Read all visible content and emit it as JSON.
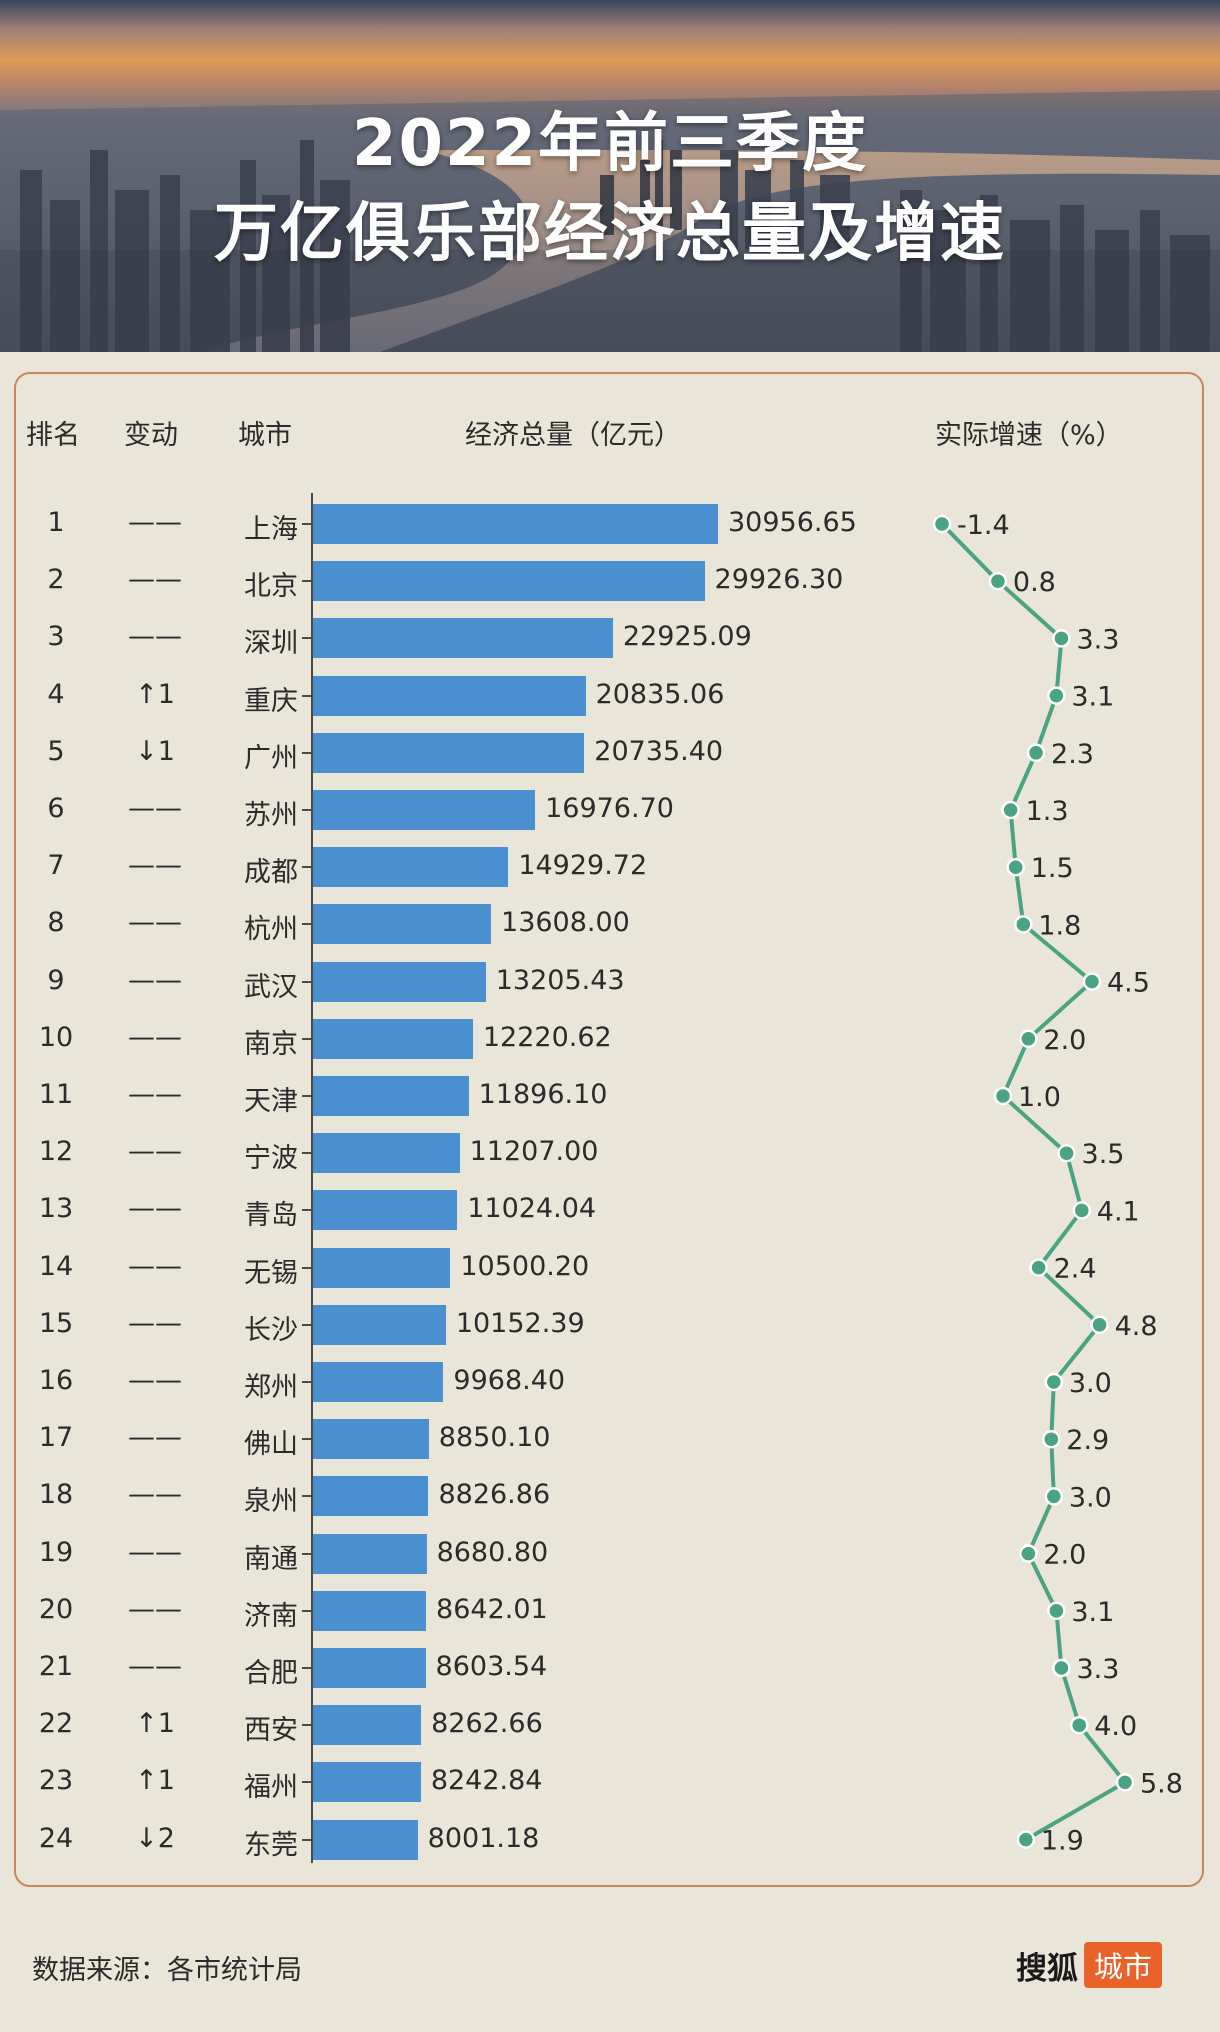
{
  "title_line1": "2022年前三季度",
  "title_line2": "万亿俱乐部经济总量及增速",
  "headers": {
    "rank": "排名",
    "change": "变动",
    "city": "城市",
    "gdp": "经济总量（亿元）",
    "growth": "实际增速（%）"
  },
  "colors": {
    "bar": "#4a90d0",
    "line": "#4aa383",
    "border": "#c8875a",
    "logo_accent": "#e8622a"
  },
  "chart_data": {
    "type": "bar",
    "categories": [
      "上海",
      "北京",
      "深圳",
      "重庆",
      "广州",
      "苏州",
      "成都",
      "杭州",
      "武汉",
      "南京",
      "天津",
      "宁波",
      "青岛",
      "无锡",
      "长沙",
      "郑州",
      "佛山",
      "泉州",
      "南通",
      "济南",
      "合肥",
      "西安",
      "福州",
      "东莞"
    ],
    "ranks": [
      "1",
      "2",
      "3",
      "4",
      "5",
      "6",
      "7",
      "8",
      "9",
      "10",
      "11",
      "12",
      "13",
      "14",
      "15",
      "16",
      "17",
      "18",
      "19",
      "20",
      "21",
      "22",
      "23",
      "24"
    ],
    "changes": [
      "——",
      "——",
      "——",
      "↑1",
      "↓1",
      "——",
      "——",
      "——",
      "——",
      "——",
      "——",
      "——",
      "——",
      "——",
      "——",
      "——",
      "——",
      "——",
      "——",
      "——",
      "——",
      "↑1",
      "↑1",
      "↓2"
    ],
    "series": [
      {
        "name": "经济总量（亿元）",
        "values": [
          30956.65,
          29926.3,
          22925.09,
          20835.06,
          20735.4,
          16976.7,
          14929.72,
          13608.0,
          13205.43,
          12220.62,
          11896.1,
          11207.0,
          11024.04,
          10500.2,
          10152.39,
          9968.4,
          8850.1,
          8826.86,
          8680.8,
          8642.01,
          8603.54,
          8262.66,
          8242.84,
          8001.18
        ],
        "labels": [
          "30956.65",
          "29926.30",
          "22925.09",
          "20835.06",
          "20735.40",
          "16976.70",
          "14929.72",
          "13608.00",
          "13205.43",
          "12220.62",
          "11896.10",
          "11207.00",
          "11024.04",
          "10500.20",
          "10152.39",
          "9968.40",
          "8850.10",
          "8826.86",
          "8680.80",
          "8642.01",
          "8603.54",
          "8262.66",
          "8242.84",
          "8001.18"
        ]
      },
      {
        "name": "实际增速（%）",
        "type": "line",
        "values": [
          -1.4,
          0.8,
          3.3,
          3.1,
          2.3,
          1.3,
          1.5,
          1.8,
          4.5,
          2.0,
          1.0,
          3.5,
          4.1,
          2.4,
          4.8,
          3.0,
          2.9,
          3.0,
          2.0,
          3.1,
          3.3,
          4.0,
          5.8,
          1.9
        ],
        "labels": [
          "-1.4",
          "0.8",
          "3.3",
          "3.1",
          "2.3",
          "1.3",
          "1.5",
          "1.8",
          "4.5",
          "2.0",
          "1.0",
          "3.5",
          "4.1",
          "2.4",
          "4.8",
          "3.0",
          "2.9",
          "3.0",
          "2.0",
          "3.1",
          "3.3",
          "4.0",
          "5.8",
          "1.9"
        ]
      }
    ]
  },
  "footer": {
    "source": "数据来源：各市统计局",
    "logo_text": "搜狐",
    "logo_badge": "城市"
  }
}
